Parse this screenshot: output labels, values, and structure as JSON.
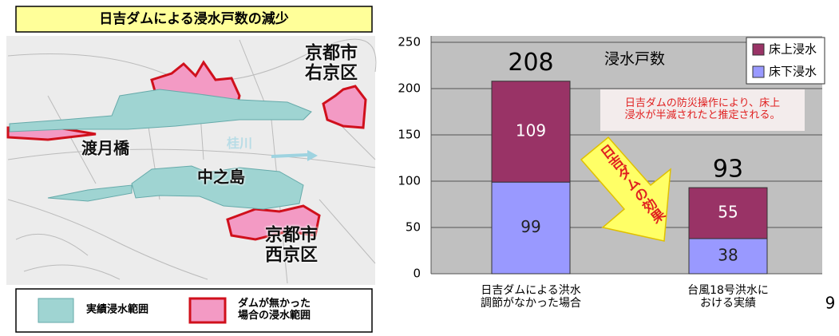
{
  "slide": {
    "title": "日吉ダムによる浸水戸数の減少",
    "page_number": 9
  },
  "map": {
    "labels": [
      "京都市\n右京区",
      "渡月橋",
      "桂川",
      "中之島",
      "京都市\n西京区"
    ],
    "legend": [
      {
        "label": "実績浸水範囲",
        "color": "#9fd4d2"
      },
      {
        "label": "ダムが無かった\n場合の浸水範囲",
        "color": "#f39ac4"
      }
    ]
  },
  "chart_data": {
    "type": "bar",
    "stacked": true,
    "subtitle": "浸水戸数",
    "categories": [
      "日吉ダムによる洪水\n調節がなかった場合",
      "台風18号洪水に\nおける実績"
    ],
    "series": [
      {
        "name": "床下浸水",
        "color": "#9999ff",
        "values": [
          99,
          38
        ]
      },
      {
        "name": "床上浸水",
        "color": "#993366",
        "values": [
          109,
          55
        ]
      }
    ],
    "totals": [
      208,
      93
    ],
    "ylim": [
      0,
      250
    ],
    "yticks": [
      0,
      50,
      100,
      150,
      200,
      250
    ],
    "grid": true,
    "legend": "top-right",
    "annotations": [
      "日吉ダムの防災操作により、床上\n浸水が半減されたと推定される。",
      "日吉ダムの効果"
    ]
  }
}
